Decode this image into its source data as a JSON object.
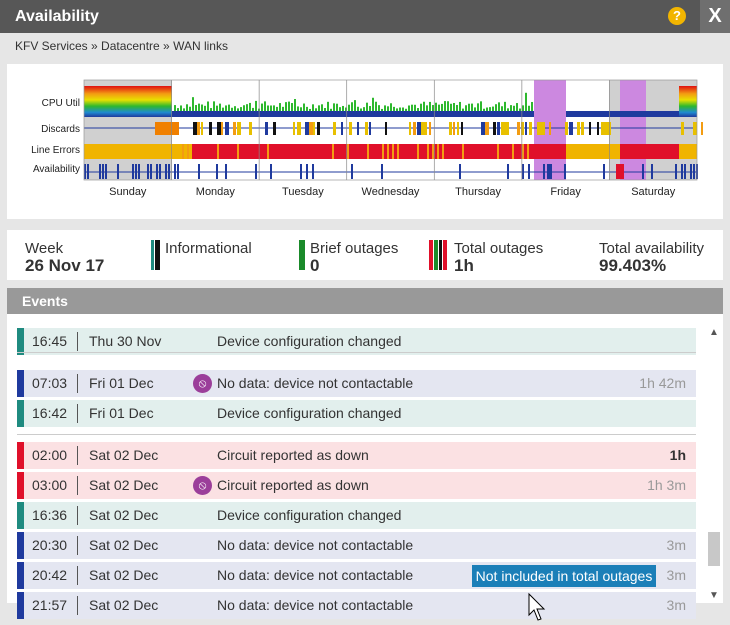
{
  "window": {
    "title": "Availability",
    "help_label": "?",
    "close_label": "X"
  },
  "breadcrumb": "KFV Services » Datacentre » WAN links",
  "chart_data": {
    "type": "heatmap",
    "rows": [
      "CPU Util",
      "Discards",
      "Line Errors",
      "Availability"
    ],
    "days": [
      "Sunday",
      "Monday",
      "Tuesday",
      "Wednesday",
      "Thursday",
      "Friday",
      "Saturday"
    ]
  },
  "summary": {
    "week_label": "Week",
    "week_value": "26 Nov 17",
    "informational_label": "Informational",
    "brief_label": "Brief outages",
    "brief_value": "0",
    "total_label": "Total outages",
    "total_value": "1h",
    "availability_label": "Total availability",
    "availability_value": "99.403%"
  },
  "colors": {
    "informational": "#1f8b80",
    "nodata": "#1f3a9e",
    "outage": "#e0102a",
    "brief": "#1a8a2a",
    "tooltip": "#1b7fb8"
  },
  "events": {
    "header": "Events",
    "rows": [
      {
        "time": "16:45",
        "date": "Thu 30 Nov",
        "message": "Device configuration changed",
        "duration": ""
      },
      {
        "time": "07:03",
        "date": "Fri 01 Dec",
        "message": "No data: device not contactable",
        "duration": "1h 42m"
      },
      {
        "time": "16:42",
        "date": "Fri 01 Dec",
        "message": "Device configuration changed",
        "duration": ""
      },
      {
        "time": "02:00",
        "date": "Sat 02 Dec",
        "message": "Circuit reported as down",
        "duration": "1h"
      },
      {
        "time": "03:00",
        "date": "Sat 02 Dec",
        "message": "Circuit reported as down",
        "duration": "1h 3m"
      },
      {
        "time": "16:36",
        "date": "Sat 02 Dec",
        "message": "Device configuration changed",
        "duration": ""
      },
      {
        "time": "20:30",
        "date": "Sat 02 Dec",
        "message": "No data: device not contactable",
        "duration": "3m"
      },
      {
        "time": "20:42",
        "date": "Sat 02 Dec",
        "message": "No data: device not contactable",
        "duration": "3m"
      },
      {
        "time": "21:57",
        "date": "Sat 02 Dec",
        "message": "No data: device not contactable",
        "duration": "3m"
      }
    ],
    "tooltip": "Not included in total outages"
  }
}
